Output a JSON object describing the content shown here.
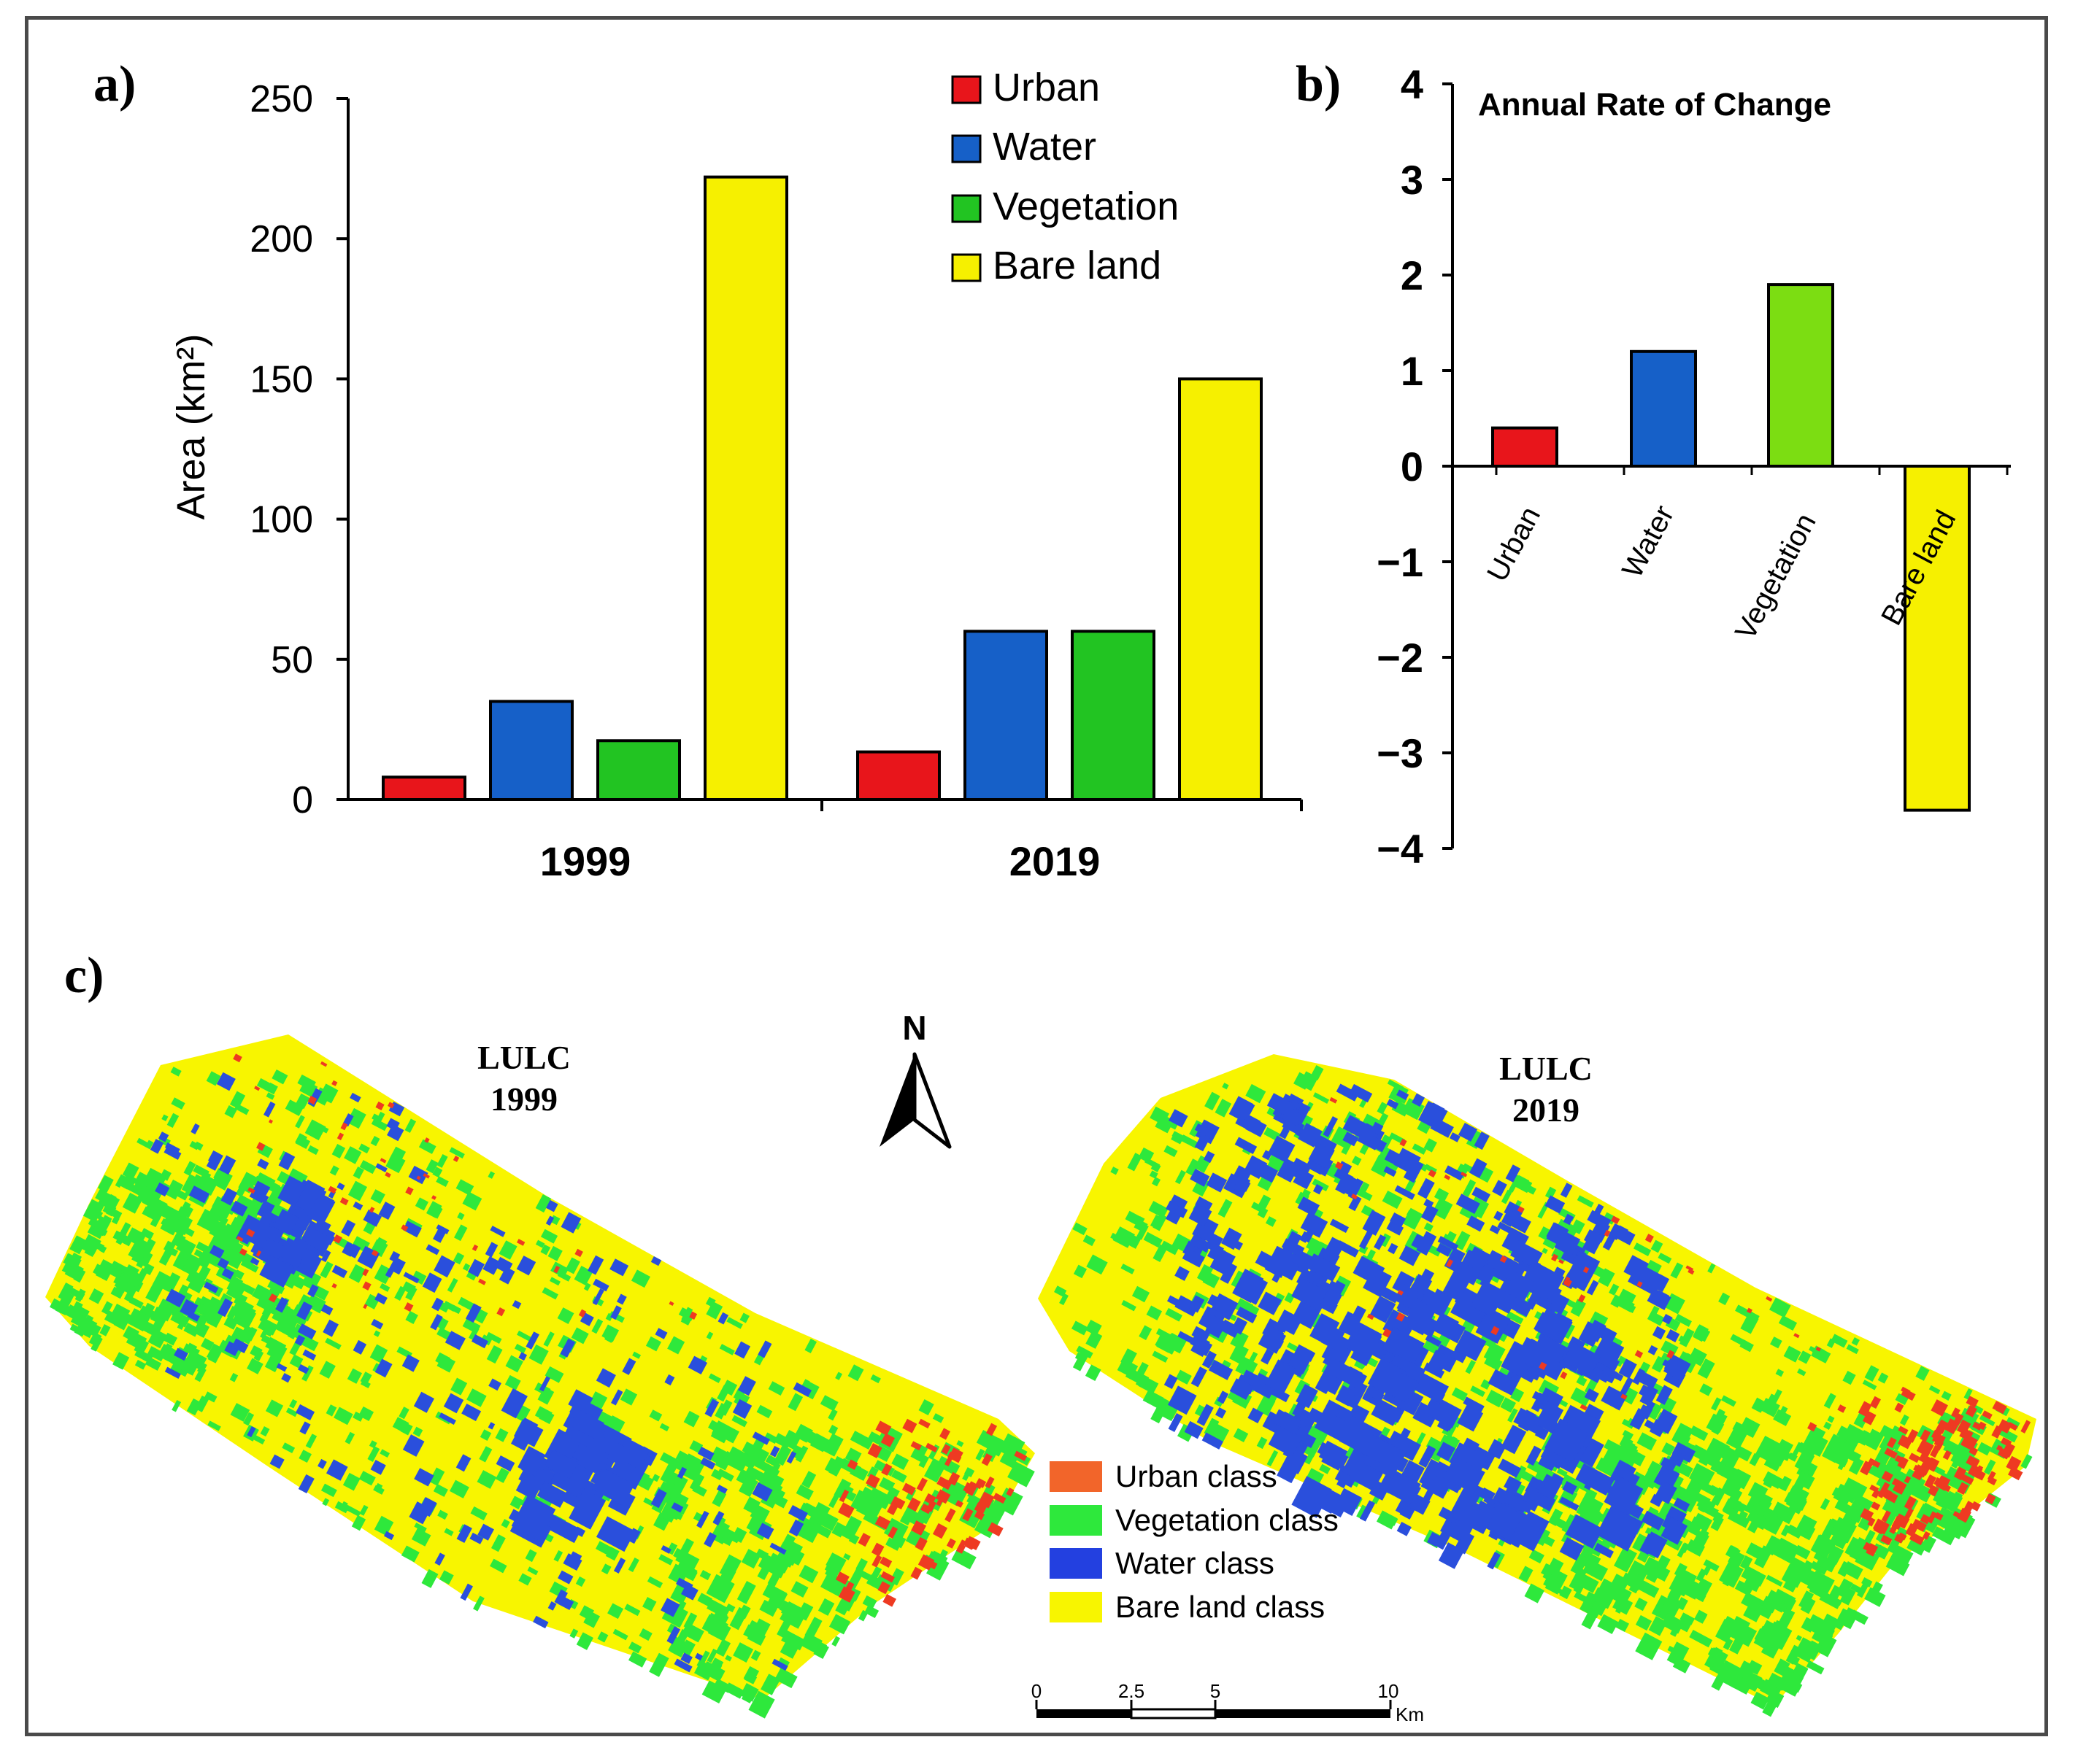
{
  "panels": {
    "a": "a)",
    "b": "b)",
    "c": "c)"
  },
  "chart_data": [
    {
      "type": "bar",
      "panel": "a)",
      "title": "",
      "xlabel": "",
      "ylabel": "Area (km²)",
      "categories": [
        "1999",
        "2019"
      ],
      "ylim": [
        0,
        250
      ],
      "yticks": [
        0,
        50,
        100,
        150,
        200,
        250
      ],
      "legend_position": "top-right",
      "series": [
        {
          "name": "Urban",
          "color": "#e8151b",
          "values": [
            8,
            17
          ]
        },
        {
          "name": "Water",
          "color": "#1660c8",
          "values": [
            35,
            60
          ]
        },
        {
          "name": "Vegetation",
          "color": "#22c422",
          "values": [
            21,
            60
          ]
        },
        {
          "name": "Bare land",
          "color": "#f6f000",
          "values": [
            222,
            150
          ]
        }
      ]
    },
    {
      "type": "bar",
      "panel": "b)",
      "title": "Annual Rate of Change",
      "xlabel": "",
      "ylabel": "",
      "categories": [
        "Urban",
        "Water",
        "Vegetation",
        "Bare land"
      ],
      "colors": [
        "#e8151b",
        "#1660c8",
        "#7cdd12",
        "#f6f000"
      ],
      "values": [
        0.4,
        1.2,
        1.9,
        -3.6
      ],
      "ylim": [
        -4,
        4
      ],
      "yticks": [
        "4",
        "3",
        "2",
        "1",
        "0",
        "−1",
        "−2",
        "−3",
        "−4"
      ],
      "ytick_values": [
        4,
        3,
        2,
        1,
        0,
        -1,
        -2,
        -3,
        -4
      ]
    }
  ],
  "maps": {
    "left_title": [
      "LULC",
      "1999"
    ],
    "right_title": [
      "LULC",
      "2019"
    ],
    "north_label": "N",
    "legend": [
      {
        "label": "Urban class",
        "color": "#f2652a"
      },
      {
        "label": "Vegetation class",
        "color": "#2ee83c"
      },
      {
        "label": "Water class",
        "color": "#2340e0"
      },
      {
        "label": "Bare land class",
        "color": "#f8f500"
      }
    ],
    "scale_labels": [
      "0",
      "2.5",
      "5",
      "10"
    ],
    "scale_unit": "Km",
    "palette": {
      "bare": "#f8f500",
      "veg": "#2ee83c",
      "water": "#2a4fdc",
      "urban": "#ee3a22"
    }
  }
}
